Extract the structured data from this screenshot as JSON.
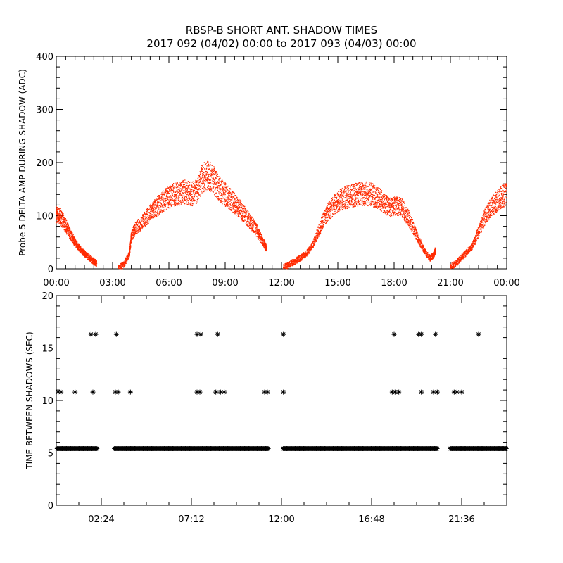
{
  "title": {
    "line1": "RBSP-B SHORT ANT. SHADOW TIMES",
    "line2": "2017 092 (04/02) 00:00 to 2017 093 (04/03) 00:00"
  },
  "colors": {
    "top_series": "#ff2a00",
    "bottom_series": "#000000",
    "axes": "#000000"
  },
  "chart_data": [
    {
      "type": "scatter",
      "ylabel": "Probe 5 DELTA AMP DURING SHADOW (ADC)",
      "xlabel": "",
      "x_unit": "hours since 2017-04-02 00:00",
      "xlim": [
        0,
        24
      ],
      "ylim": [
        0,
        400
      ],
      "x_ticks": [
        {
          "v": 0,
          "label": "00:00"
        },
        {
          "v": 3,
          "label": "03:00"
        },
        {
          "v": 6,
          "label": "06:00"
        },
        {
          "v": 9,
          "label": "09:00"
        },
        {
          "v": 12,
          "label": "12:00"
        },
        {
          "v": 15,
          "label": "15:00"
        },
        {
          "v": 18,
          "label": "18:00"
        },
        {
          "v": 21,
          "label": "21:00"
        },
        {
          "v": 24,
          "label": "00:00"
        }
      ],
      "y_ticks": [
        {
          "v": 0,
          "label": "0"
        },
        {
          "v": 100,
          "label": "100"
        },
        {
          "v": 200,
          "label": "200"
        },
        {
          "v": 300,
          "label": "300"
        },
        {
          "v": 400,
          "label": "400"
        }
      ],
      "series": [
        {
          "marker": "dot",
          "points": [
            [
              0.0,
              103
            ],
            [
              0.2,
              98
            ],
            [
              0.4,
              88
            ],
            [
              0.6,
              75
            ],
            [
              0.8,
              62
            ],
            [
              1.0,
              50
            ],
            [
              1.2,
              40
            ],
            [
              1.4,
              32
            ],
            [
              1.6,
              26
            ],
            [
              1.8,
              20
            ],
            [
              2.0,
              14
            ],
            [
              2.15,
              10
            ],
            [
              3.3,
              1
            ],
            [
              3.6,
              8
            ],
            [
              3.9,
              28
            ],
            [
              4.0,
              62
            ],
            [
              4.2,
              75
            ],
            [
              4.5,
              85
            ],
            [
              4.8,
              96
            ],
            [
              5.1,
              108
            ],
            [
              5.4,
              118
            ],
            [
              5.7,
              128
            ],
            [
              6.0,
              135
            ],
            [
              6.3,
              140
            ],
            [
              6.6,
              142
            ],
            [
              6.9,
              145
            ],
            [
              7.2,
              140
            ],
            [
              7.5,
              145
            ],
            [
              7.8,
              172
            ],
            [
              8.1,
              175
            ],
            [
              8.4,
              168
            ],
            [
              8.7,
              150
            ],
            [
              9.0,
              140
            ],
            [
              9.3,
              130
            ],
            [
              9.6,
              120
            ],
            [
              9.9,
              108
            ],
            [
              10.2,
              95
            ],
            [
              10.5,
              82
            ],
            [
              10.8,
              65
            ],
            [
              11.1,
              45
            ],
            [
              11.2,
              38
            ],
            [
              12.1,
              2
            ],
            [
              12.4,
              8
            ],
            [
              12.7,
              14
            ],
            [
              13.0,
              20
            ],
            [
              13.3,
              28
            ],
            [
              13.6,
              40
            ],
            [
              13.9,
              65
            ],
            [
              14.2,
              90
            ],
            [
              14.5,
              108
            ],
            [
              14.8,
              120
            ],
            [
              15.1,
              128
            ],
            [
              15.4,
              134
            ],
            [
              15.7,
              137
            ],
            [
              16.0,
              140
            ],
            [
              16.3,
              142
            ],
            [
              16.6,
              141
            ],
            [
              16.9,
              138
            ],
            [
              17.2,
              132
            ],
            [
              17.5,
              122
            ],
            [
              17.8,
              115
            ],
            [
              18.1,
              118
            ],
            [
              18.4,
              115
            ],
            [
              18.7,
              100
            ],
            [
              19.0,
              80
            ],
            [
              19.3,
              55
            ],
            [
              19.6,
              35
            ],
            [
              19.9,
              20
            ],
            [
              20.1,
              25
            ],
            [
              20.2,
              35
            ],
            [
              21.0,
              3
            ],
            [
              21.3,
              10
            ],
            [
              21.6,
              22
            ],
            [
              21.9,
              32
            ],
            [
              22.2,
              45
            ],
            [
              22.5,
              70
            ],
            [
              22.8,
              95
            ],
            [
              23.1,
              112
            ],
            [
              23.4,
              124
            ],
            [
              23.7,
              134
            ],
            [
              24.0,
              142
            ]
          ]
        }
      ]
    },
    {
      "type": "scatter",
      "ylabel": "TIME BETWEEN SHADOWS (SEC)",
      "xlabel": "",
      "x_unit": "hours since 2017-04-02 00:00",
      "xlim": [
        0,
        24
      ],
      "ylim": [
        0,
        20
      ],
      "x_ticks": [
        {
          "v": 2.4,
          "label": "02:24"
        },
        {
          "v": 7.2,
          "label": "07:12"
        },
        {
          "v": 12.0,
          "label": "12:00"
        },
        {
          "v": 16.8,
          "label": "16:48"
        },
        {
          "v": 21.6,
          "label": "21:36"
        }
      ],
      "y_ticks": [
        {
          "v": 0,
          "label": "0"
        },
        {
          "v": 5,
          "label": "5"
        },
        {
          "v": 10,
          "label": "10"
        },
        {
          "v": 15,
          "label": "15"
        },
        {
          "v": 20,
          "label": "20"
        }
      ],
      "series": [
        {
          "marker": "asterisk",
          "value_bands": [
            {
              "y": 5.4,
              "x_ranges": [
                [
                  0.05,
                  2.2
                ],
                [
                  3.1,
                  11.3
                ],
                [
                  12.1,
                  20.3
                ],
                [
                  21.0,
                  24.0
                ]
              ]
            }
          ],
          "points": [
            [
              0.1,
              10.8
            ],
            [
              0.25,
              10.8
            ],
            [
              1.0,
              10.8
            ],
            [
              1.95,
              10.8
            ],
            [
              3.15,
              10.8
            ],
            [
              3.3,
              10.8
            ],
            [
              3.95,
              10.8
            ],
            [
              7.5,
              10.8
            ],
            [
              7.65,
              10.8
            ],
            [
              8.5,
              10.8
            ],
            [
              8.75,
              10.8
            ],
            [
              8.95,
              10.8
            ],
            [
              11.1,
              10.8
            ],
            [
              11.25,
              10.8
            ],
            [
              12.1,
              10.8
            ],
            [
              17.9,
              10.8
            ],
            [
              18.05,
              10.8
            ],
            [
              18.25,
              10.8
            ],
            [
              19.45,
              10.8
            ],
            [
              20.1,
              10.8
            ],
            [
              20.3,
              10.8
            ],
            [
              21.2,
              10.8
            ],
            [
              21.35,
              10.8
            ],
            [
              21.6,
              10.8
            ],
            [
              1.85,
              16.3
            ],
            [
              2.1,
              16.3
            ],
            [
              3.2,
              16.3
            ],
            [
              7.5,
              16.3
            ],
            [
              7.7,
              16.3
            ],
            [
              8.6,
              16.3
            ],
            [
              12.1,
              16.3
            ],
            [
              18.0,
              16.3
            ],
            [
              19.3,
              16.3
            ],
            [
              19.45,
              16.3
            ],
            [
              20.2,
              16.3
            ],
            [
              22.5,
              16.3
            ]
          ]
        }
      ]
    }
  ]
}
